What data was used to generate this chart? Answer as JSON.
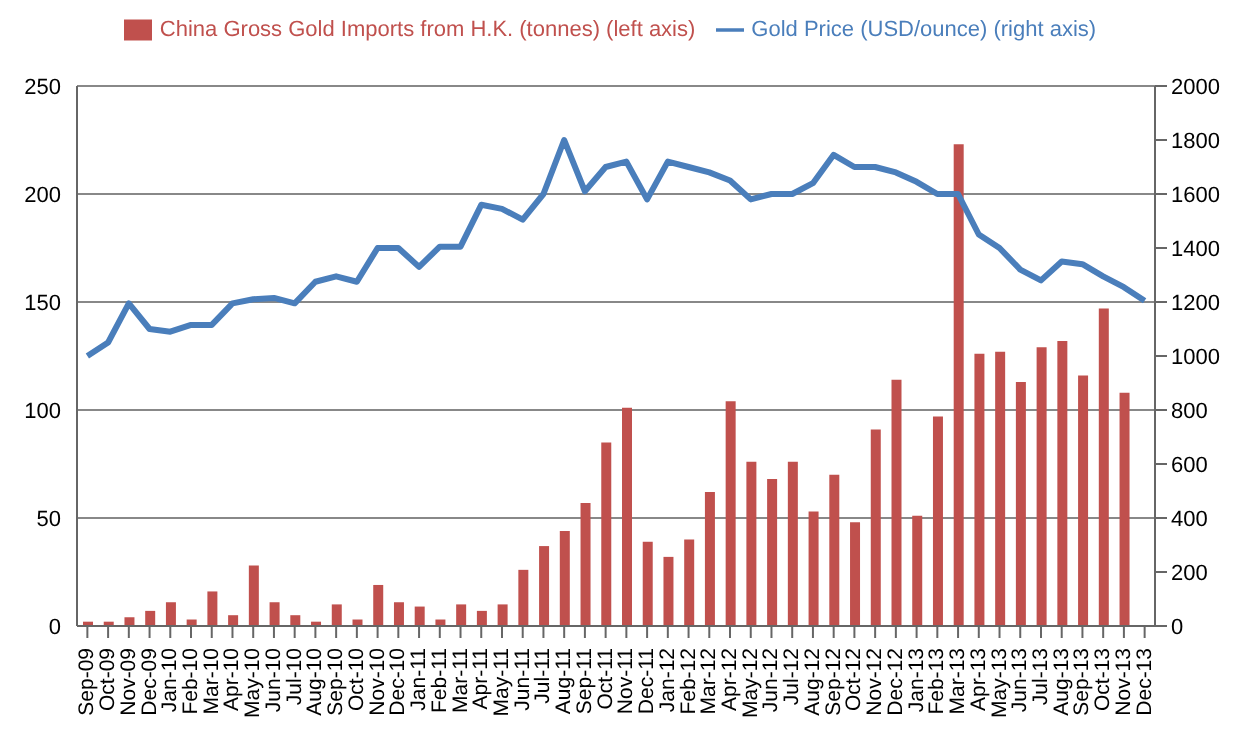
{
  "chart_data": {
    "type": "bar",
    "categories": [
      "Sep-09",
      "Oct-09",
      "Nov-09",
      "Dec-09",
      "Jan-10",
      "Feb-10",
      "Mar-10",
      "Apr-10",
      "May-10",
      "Jun-10",
      "Jul-10",
      "Aug-10",
      "Sep-10",
      "Oct-10",
      "Nov-10",
      "Dec-10",
      "Jan-11",
      "Feb-11",
      "Mar-11",
      "Apr-11",
      "May-11",
      "Jun-11",
      "Jul-11",
      "Aug-11",
      "Sep-11",
      "Oct-11",
      "Nov-11",
      "Dec-11",
      "Jan-12",
      "Feb-12",
      "Mar-12",
      "Apr-12",
      "May-12",
      "Jun-12",
      "Jul-12",
      "Aug-12",
      "Sep-12",
      "Oct-12",
      "Nov-12",
      "Dec-12",
      "Jan-13",
      "Feb-13",
      "Mar-13",
      "Apr-13",
      "May-13",
      "Jun-13",
      "Jul-13",
      "Aug-13",
      "Sep-13",
      "Oct-13",
      "Nov-13",
      "Dec-13"
    ],
    "series": [
      {
        "name": "China Gross Gold Imports from H.K. (tonnes) (left axis)",
        "type": "bar",
        "color": "#c0504d",
        "values": [
          2,
          2,
          4,
          7,
          11,
          3,
          16,
          5,
          28,
          11,
          5,
          2,
          10,
          3,
          19,
          11,
          9,
          3,
          10,
          7,
          10,
          26,
          37,
          44,
          57,
          85,
          101,
          39,
          32,
          40,
          62,
          104,
          76,
          68,
          76,
          53,
          70,
          48,
          91,
          114,
          51,
          97,
          223,
          126,
          127,
          113,
          129,
          132,
          116,
          147,
          108,
          null
        ]
      },
      {
        "name": "Gold Price (USD/ounce) (right axis)",
        "type": "line",
        "axis": "y2",
        "color": "#4a7ebb",
        "values": [
          1000,
          1050,
          1195,
          1100,
          1090,
          1115,
          1115,
          1195,
          1210,
          1215,
          1195,
          1275,
          1295,
          1275,
          1400,
          1400,
          1330,
          1405,
          1405,
          1560,
          1545,
          1505,
          1600,
          1800,
          1610,
          1700,
          1720,
          1580,
          1720,
          1700,
          1680,
          1650,
          1580,
          1600,
          1600,
          1640,
          1745,
          1700,
          1700,
          1680,
          1645,
          1600,
          1600,
          1450,
          1400,
          1320,
          1280,
          1350,
          1340,
          1295,
          1255,
          1205
        ]
      }
    ],
    "ylim": [
      0,
      250
    ],
    "yticks": [
      0,
      50,
      100,
      150,
      200,
      250
    ],
    "y2lim": [
      0,
      2000
    ],
    "y2ticks": [
      0,
      200,
      400,
      600,
      800,
      1000,
      1200,
      1400,
      1600,
      1800,
      2000
    ],
    "grid": "y",
    "legend": "top",
    "marker": "none",
    "line_style": "solid"
  }
}
